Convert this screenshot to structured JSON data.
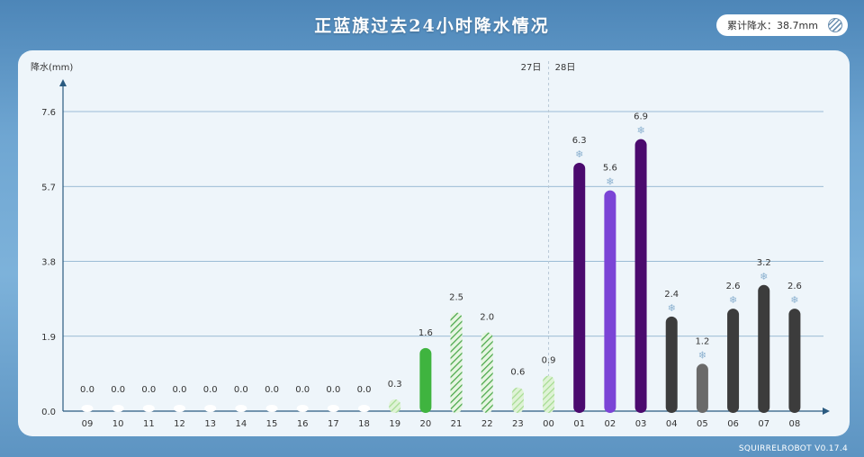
{
  "title": "正蓝旗过去24小时降水情况",
  "total": {
    "label": "累计降水：38.7mm",
    "icon": "rain-drizzle-icon"
  },
  "footer": "SQUIRRELROBOT V0.17.4",
  "chart_data": {
    "type": "bar",
    "ylabel": "降水(mm)",
    "yticks": [
      "0.0",
      "1.9",
      "3.8",
      "5.7",
      "7.6"
    ],
    "ylim": [
      0,
      7.6
    ],
    "grid": true,
    "day_labels": {
      "before": "27日",
      "after": "28日"
    },
    "categories": [
      "09",
      "10",
      "11",
      "12",
      "13",
      "14",
      "15",
      "16",
      "17",
      "18",
      "19",
      "20",
      "21",
      "22",
      "23",
      "00",
      "01",
      "02",
      "03",
      "04",
      "05",
      "06",
      "07",
      "08"
    ],
    "values": [
      0.0,
      0.0,
      0.0,
      0.0,
      0.0,
      0.0,
      0.0,
      0.0,
      0.0,
      0.0,
      0.3,
      1.6,
      2.5,
      2.0,
      0.6,
      0.9,
      6.3,
      5.6,
      6.9,
      2.4,
      1.2,
      2.6,
      3.2,
      2.6
    ],
    "value_labels": [
      "0.0",
      "0.0",
      "0.0",
      "0.0",
      "0.0",
      "0.0",
      "0.0",
      "0.0",
      "0.0",
      "0.0",
      "0.3",
      "1.6",
      "2.5",
      "2.0",
      "0.6",
      "0.9",
      "6.3",
      "5.6",
      "6.9",
      "2.4",
      "1.2",
      "2.6",
      "3.2",
      "2.6"
    ],
    "colors": [
      "#ffffff",
      "#ffffff",
      "#ffffff",
      "#ffffff",
      "#ffffff",
      "#ffffff",
      "#ffffff",
      "#ffffff",
      "#ffffff",
      "#ffffff",
      "#b7e6a8",
      "#3fb43f",
      "#6cc16c",
      "#5fbb5f",
      "#b7e6a8",
      "#b7e6a8",
      "#4b0a6e",
      "#7b44d6",
      "#4b0a6e",
      "#3c3c3c",
      "#6a6a6a",
      "#3c3c3c",
      "#3c3c3c",
      "#3c3c3c"
    ],
    "hatched": [
      false,
      false,
      false,
      false,
      false,
      false,
      false,
      false,
      false,
      false,
      true,
      false,
      true,
      true,
      true,
      true,
      false,
      false,
      false,
      false,
      false,
      false,
      false,
      false
    ],
    "snow": [
      false,
      false,
      false,
      false,
      false,
      false,
      false,
      false,
      false,
      false,
      false,
      false,
      false,
      false,
      false,
      false,
      true,
      true,
      true,
      true,
      true,
      true,
      true,
      true
    ],
    "snow_glyph": "❄"
  }
}
